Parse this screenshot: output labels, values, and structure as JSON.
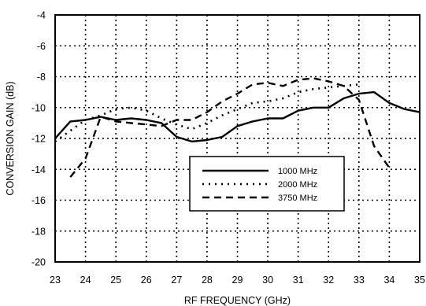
{
  "chart_data": {
    "type": "line",
    "xlabel": "RF FREQUENCY (GHz)",
    "ylabel": "CONVERSION GAIN (dB)",
    "xlim": [
      23,
      35
    ],
    "ylim": [
      -20,
      -4
    ],
    "xticks": [
      23,
      24,
      25,
      26,
      27,
      28,
      29,
      30,
      31,
      32,
      33,
      34,
      35
    ],
    "yticks": [
      -4,
      -6,
      -8,
      -10,
      -12,
      -14,
      -16,
      -18,
      -20
    ],
    "grid": true,
    "legend_position": "lower-right",
    "series": [
      {
        "name": "1000 MHz",
        "line_style": "solid",
        "x": [
          23,
          23.5,
          24,
          24.5,
          25,
          25.5,
          26,
          26.5,
          27,
          27.5,
          28,
          28.5,
          29,
          29.5,
          30,
          30.5,
          31,
          31.5,
          32,
          32.5,
          33,
          33.5,
          34,
          34.5,
          35
        ],
        "y": [
          -12.0,
          -10.9,
          -10.8,
          -10.6,
          -10.8,
          -10.7,
          -10.8,
          -11.0,
          -11.9,
          -12.2,
          -12.1,
          -11.9,
          -11.2,
          -10.9,
          -10.7,
          -10.7,
          -10.2,
          -10.0,
          -10.0,
          -9.4,
          -9.1,
          -9.0,
          -9.7,
          -10.1,
          -10.3
        ]
      },
      {
        "name": "2000 MHz",
        "line_style": "dotted",
        "x": [
          23,
          23.5,
          24,
          24.5,
          25,
          25.5,
          26,
          26.5,
          27,
          27.5,
          28,
          28.5,
          29,
          29.5,
          30,
          30.5,
          31,
          31.5,
          32,
          32.5,
          33
        ],
        "y": [
          -12.2,
          -11.5,
          -10.8,
          -10.5,
          -10.1,
          -10.0,
          -10.2,
          -10.7,
          -11.1,
          -11.4,
          -11.0,
          -10.5,
          -10.1,
          -9.7,
          -9.6,
          -9.4,
          -9.0,
          -8.8,
          -8.7,
          -8.6,
          -8.5
        ]
      },
      {
        "name": "3750 MHz",
        "line_style": "dashed",
        "x": [
          23.5,
          24,
          24.5,
          25,
          25.5,
          26,
          26.5,
          27,
          27.5,
          28,
          28.5,
          29,
          29.5,
          30,
          30.5,
          31,
          31.5,
          32,
          32.5,
          33,
          33.5,
          34
        ],
        "y": [
          -14.5,
          -13.3,
          -10.6,
          -10.9,
          -11.0,
          -11.1,
          -11.2,
          -10.8,
          -10.8,
          -10.3,
          -9.6,
          -9.1,
          -8.5,
          -8.4,
          -8.6,
          -8.2,
          -8.1,
          -8.3,
          -8.6,
          -9.5,
          -12.5,
          -13.9
        ]
      }
    ]
  }
}
